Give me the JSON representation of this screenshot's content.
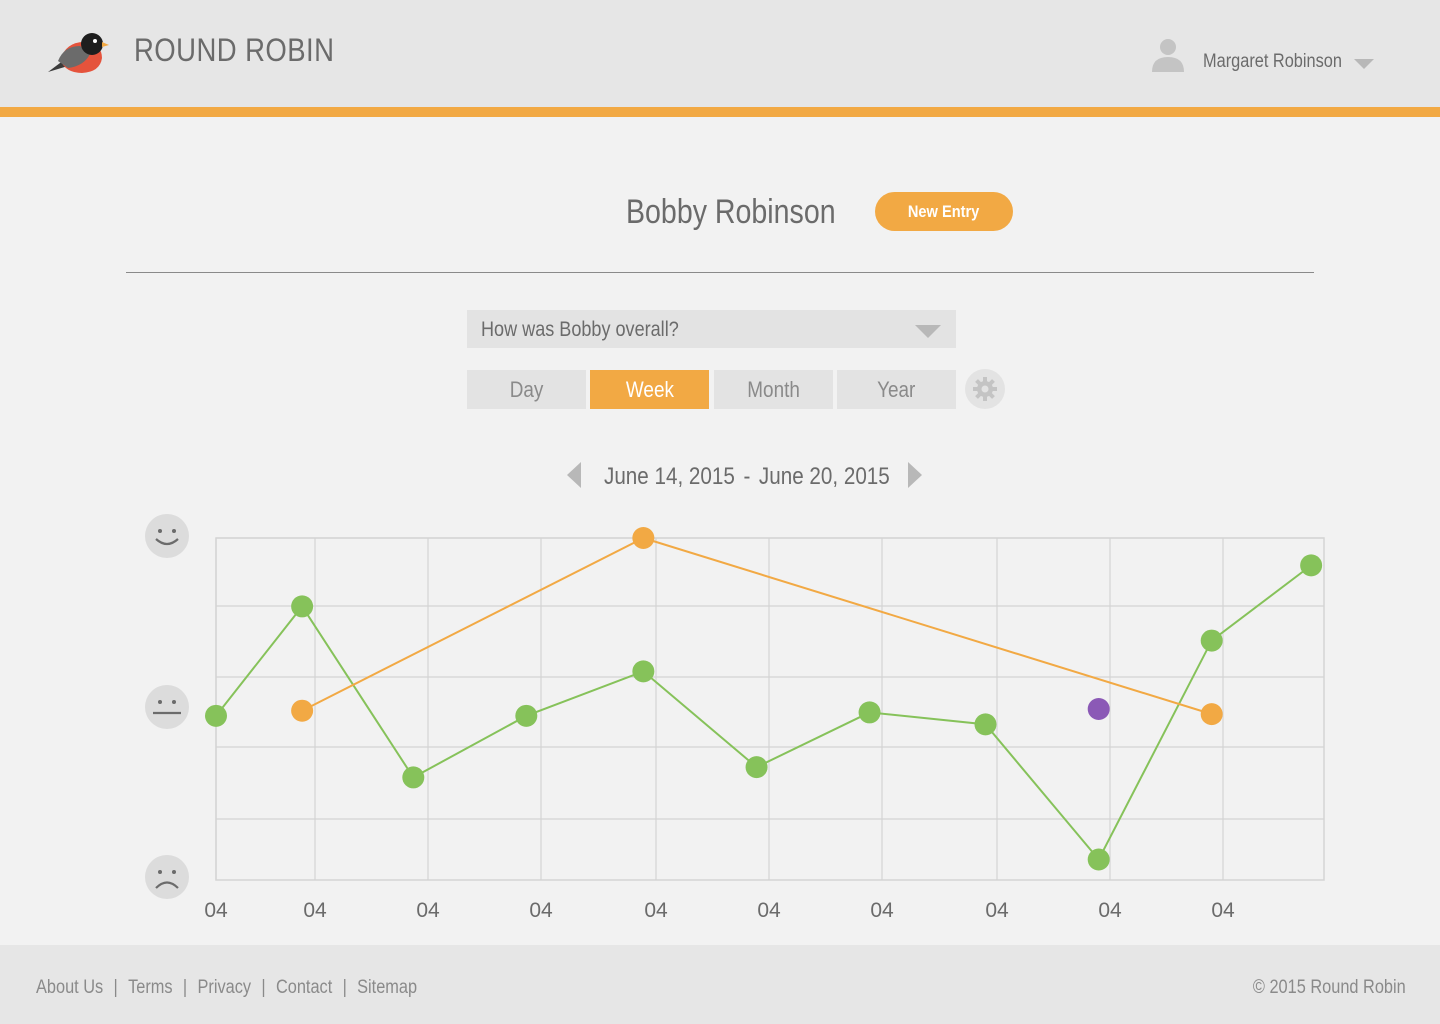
{
  "header": {
    "brand": "ROUND ROBIN",
    "logo_icon": "robin-bird-icon",
    "user": {
      "name": "Margaret Robinson",
      "icon": "user-icon",
      "menu_icon": "caret-down-icon"
    }
  },
  "main": {
    "child_name": "Bobby Robinson",
    "new_entry_label": "New Entry",
    "question": {
      "selected": "How was Bobby overall?",
      "icon": "caret-down-icon"
    },
    "tabs": [
      {
        "label": "Day",
        "active": false
      },
      {
        "label": "Week",
        "active": true
      },
      {
        "label": "Month",
        "active": false
      },
      {
        "label": "Year",
        "active": false
      }
    ],
    "settings_icon": "gear-icon",
    "date_range": {
      "start": "June 14, 2015",
      "separator": "-",
      "end": "June 20, 2015"
    }
  },
  "colors": {
    "accent": "#f2a944",
    "green_series": "#86c25a",
    "orange_series": "#f2a944",
    "purple_point": "#8b59b6",
    "grid": "#d4d4d4",
    "header_bg": "#e6e6e6"
  },
  "chart_data": {
    "type": "line",
    "y_axis_icons": [
      "happy-face-icon",
      "neutral-face-icon",
      "sad-face-icon"
    ],
    "ylim": [
      0,
      100
    ],
    "x": [
      "04",
      "04",
      "04",
      "04",
      "04",
      "04",
      "04",
      "04",
      "04",
      "04"
    ],
    "series": [
      {
        "color": "#86c25a",
        "points": [
          {
            "x": 0,
            "y": 48
          },
          {
            "x": 0.87,
            "y": 80
          },
          {
            "x": 1.87,
            "y": 30
          },
          {
            "x": 2.87,
            "y": 48
          },
          {
            "x": 3.89,
            "y": 61
          },
          {
            "x": 4.89,
            "y": 33
          },
          {
            "x": 5.89,
            "y": 49
          },
          {
            "x": 6.9,
            "y": 45.5
          },
          {
            "x": 7.9,
            "y": 6
          },
          {
            "x": 8.9,
            "y": 70
          },
          {
            "x": 9.78,
            "y": 92
          }
        ]
      },
      {
        "color": "#f2a944",
        "points": [
          {
            "x": 0.87,
            "y": 49.5
          },
          {
            "x": 3.89,
            "y": 100
          },
          {
            "x": 8.9,
            "y": 48.5
          }
        ]
      },
      {
        "color": "#8b59b6",
        "points": [
          {
            "x": 7.9,
            "y": 50
          }
        ]
      }
    ]
  },
  "footer": {
    "links": [
      "About Us",
      "Terms",
      "Privacy",
      "Contact",
      "Sitemap"
    ],
    "separator": "|",
    "copyright": "© 2015 Round Robin"
  }
}
